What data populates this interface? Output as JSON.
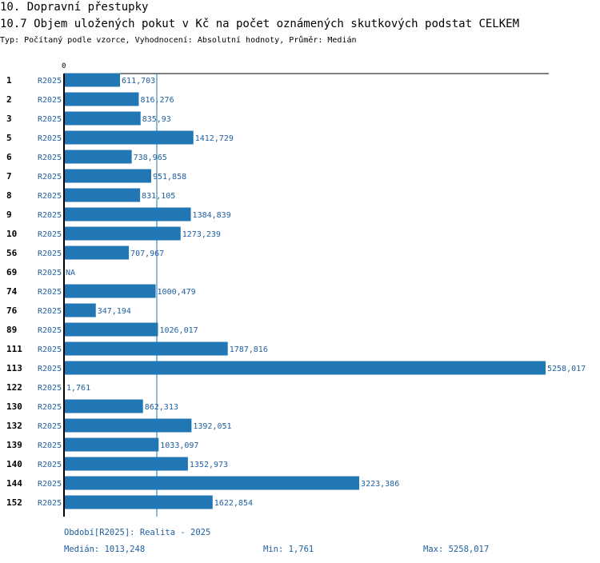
{
  "header": {
    "section": "10. Dopravní přestupky",
    "title": "10.7 Objem uložených pokut v Kč na počet oznámených skutkových podstat CELKEM",
    "subtitle": "Typ: Počítaný podle vzorce, Vyhodnocení: Absolutní hodnoty, Průměr: Medián"
  },
  "colors": {
    "bar": "#2077b4",
    "label": "#1f5fa0",
    "axis": "#000000"
  },
  "chart_data": {
    "type": "bar",
    "orientation": "horizontal",
    "axis_zero_label": "0",
    "period_label": "R2025",
    "rows": [
      {
        "id": "1",
        "value": 611.703,
        "label": "611,703"
      },
      {
        "id": "2",
        "value": 816.276,
        "label": "816,276"
      },
      {
        "id": "3",
        "value": 835.93,
        "label": "835,93"
      },
      {
        "id": "5",
        "value": 1412.729,
        "label": "1412,729"
      },
      {
        "id": "6",
        "value": 738.965,
        "label": "738,965"
      },
      {
        "id": "7",
        "value": 951.858,
        "label": "951,858"
      },
      {
        "id": "8",
        "value": 831.105,
        "label": "831,105"
      },
      {
        "id": "9",
        "value": 1384.839,
        "label": "1384,839"
      },
      {
        "id": "10",
        "value": 1273.239,
        "label": "1273,239"
      },
      {
        "id": "56",
        "value": 707.967,
        "label": "707,967"
      },
      {
        "id": "69",
        "value": null,
        "label": "NA"
      },
      {
        "id": "74",
        "value": 1000.479,
        "label": "1000,479"
      },
      {
        "id": "76",
        "value": 347.194,
        "label": "347,194"
      },
      {
        "id": "89",
        "value": 1026.017,
        "label": "1026,017"
      },
      {
        "id": "111",
        "value": 1787.816,
        "label": "1787,816"
      },
      {
        "id": "113",
        "value": 5258.017,
        "label": "5258,017"
      },
      {
        "id": "122",
        "value": 1.761,
        "label": "1,761"
      },
      {
        "id": "130",
        "value": 862.313,
        "label": "862,313"
      },
      {
        "id": "132",
        "value": 1392.051,
        "label": "1392,051"
      },
      {
        "id": "139",
        "value": 1033.097,
        "label": "1033,097"
      },
      {
        "id": "140",
        "value": 1352.973,
        "label": "1352,973"
      },
      {
        "id": "144",
        "value": 3223.386,
        "label": "3223,386"
      },
      {
        "id": "152",
        "value": 1622.854,
        "label": "1622,854"
      }
    ],
    "median": 1013.248,
    "xlim": [
      0,
      5258.017
    ]
  },
  "footer": {
    "period": "Období[R2025]: Realita - 2025",
    "median": "Medián: 1013,248",
    "min": "Min: 1,761",
    "max": "Max: 5258,017"
  }
}
